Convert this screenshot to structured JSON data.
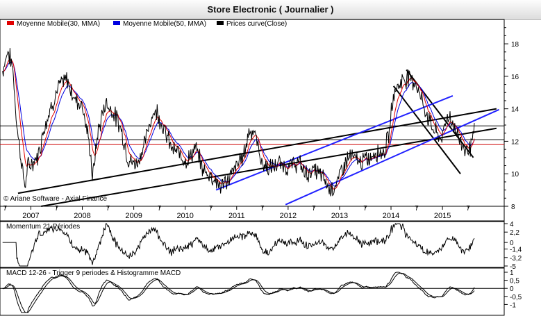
{
  "title": "Store Electronic  ( Journalier )",
  "copyright": "© Ariane Software - Axial Finance",
  "colors": {
    "ma30": "#e00000",
    "ma50": "#0000e0",
    "close": "#000000",
    "channel_blue": "#2020ff"
  },
  "legend": [
    {
      "label": "Moyenne Mobile(30, MMA)",
      "color": "#e00000"
    },
    {
      "label": "Moyenne Mobile(50, MMA)",
      "color": "#0000e0"
    },
    {
      "label": "Prices curve(Close)",
      "color": "#000000"
    }
  ],
  "chart_data": [
    {
      "type": "line",
      "panel": "price",
      "ylim": [
        8,
        19.5
      ],
      "yticks": [
        "18",
        "16",
        "14",
        "12",
        "10",
        "8"
      ],
      "xlim": [
        2006.4,
        2016.2
      ],
      "years": [
        "2007",
        "2008",
        "2009",
        "2010",
        "2011",
        "2012",
        "2013",
        "2014",
        "2015"
      ],
      "mid_tick_label": "7",
      "close_keypoints": [
        [
          2006.45,
          16.3
        ],
        [
          2006.55,
          17.6
        ],
        [
          2006.65,
          16.5
        ],
        [
          2006.72,
          13.2
        ],
        [
          2006.8,
          11.2
        ],
        [
          2006.88,
          9.2
        ],
        [
          2006.95,
          10.5
        ],
        [
          2007.05,
          10.7
        ],
        [
          2007.15,
          11.2
        ],
        [
          2007.25,
          12.8
        ],
        [
          2007.4,
          14.2
        ],
        [
          2007.55,
          15.4
        ],
        [
          2007.7,
          15.8
        ],
        [
          2007.85,
          14.6
        ],
        [
          2008.0,
          14.3
        ],
        [
          2008.15,
          11.5
        ],
        [
          2008.2,
          9.7
        ],
        [
          2008.3,
          12.5
        ],
        [
          2008.45,
          14.4
        ],
        [
          2008.6,
          13.8
        ],
        [
          2008.75,
          12.8
        ],
        [
          2008.9,
          10.8
        ],
        [
          2009.05,
          10.6
        ],
        [
          2009.2,
          11.7
        ],
        [
          2009.35,
          13.6
        ],
        [
          2009.45,
          13.9
        ],
        [
          2009.6,
          12.6
        ],
        [
          2009.75,
          11.5
        ],
        [
          2009.9,
          11.2
        ],
        [
          2010.05,
          10.8
        ],
        [
          2010.2,
          11.6
        ],
        [
          2010.35,
          10.2
        ],
        [
          2010.5,
          9.9
        ],
        [
          2010.7,
          9.2
        ],
        [
          2010.85,
          9.7
        ],
        [
          2011.0,
          10.5
        ],
        [
          2011.15,
          11.3
        ],
        [
          2011.25,
          12.8
        ],
        [
          2011.35,
          12.5
        ],
        [
          2011.5,
          10.6
        ],
        [
          2011.65,
          10.3
        ],
        [
          2011.8,
          10.6
        ],
        [
          2012.0,
          10.4
        ],
        [
          2012.2,
          10.7
        ],
        [
          2012.35,
          10.0
        ],
        [
          2012.5,
          10.2
        ],
        [
          2012.65,
          9.9
        ],
        [
          2012.8,
          9.1
        ],
        [
          2012.95,
          9.3
        ],
        [
          2013.05,
          10.4
        ],
        [
          2013.2,
          11.1
        ],
        [
          2013.4,
          10.7
        ],
        [
          2013.6,
          11.0
        ],
        [
          2013.7,
          11.4
        ],
        [
          2013.85,
          11.3
        ],
        [
          2013.95,
          12.2
        ],
        [
          2014.05,
          15.0
        ],
        [
          2014.2,
          15.7
        ],
        [
          2014.35,
          16.0
        ],
        [
          2014.5,
          15.5
        ],
        [
          2014.62,
          14.3
        ],
        [
          2014.75,
          13.2
        ],
        [
          2014.9,
          12.4
        ],
        [
          2015.0,
          12.2
        ],
        [
          2015.1,
          13.7
        ],
        [
          2015.2,
          13.1
        ],
        [
          2015.35,
          12.0
        ],
        [
          2015.45,
          11.5
        ],
        [
          2015.55,
          11.7
        ],
        [
          2015.62,
          12.5
        ]
      ],
      "channel_lines": [
        {
          "color": "black",
          "points": [
            [
              2006.75,
              8.8
            ],
            [
              2016.05,
              14.0
            ]
          ]
        },
        {
          "color": "black",
          "points": [
            [
              2007.2,
              8.0
            ],
            [
              2016.05,
              12.8
            ]
          ]
        },
        {
          "color": "black",
          "points": [
            [
              2014.3,
              16.4
            ],
            [
              2015.6,
              11.0
            ]
          ]
        },
        {
          "color": "black",
          "points": [
            [
              2014.05,
              15.4
            ],
            [
              2015.35,
              10.0
            ]
          ]
        },
        {
          "color": "blue",
          "points": [
            [
              2010.6,
              9.0
            ],
            [
              2015.2,
              14.8
            ]
          ]
        },
        {
          "color": "blue",
          "points": [
            [
              2011.95,
              8.1
            ],
            [
              2016.1,
              13.95
            ]
          ]
        }
      ],
      "horizontal_levels": [
        {
          "value": 12.95,
          "color": "#000000"
        },
        {
          "value": 12.1,
          "color": "#000000"
        },
        {
          "value": 11.8,
          "color": "#cc0000"
        }
      ]
    },
    {
      "type": "line",
      "panel": "momentum",
      "title": "Momentum 21 Périodes",
      "ylim": [
        -5,
        4
      ],
      "yticks": [
        "4",
        "2,2",
        "0",
        "-1,4",
        "-3,2",
        "-5"
      ]
    },
    {
      "type": "line",
      "panel": "macd",
      "title": "MACD 12-26 - Trigger 9 periodes & Histogramme MACD",
      "ylim": [
        -1.5,
        1.0
      ],
      "yticks": [
        "1",
        "0,5",
        "0",
        "-0,5",
        "-1"
      ]
    }
  ]
}
